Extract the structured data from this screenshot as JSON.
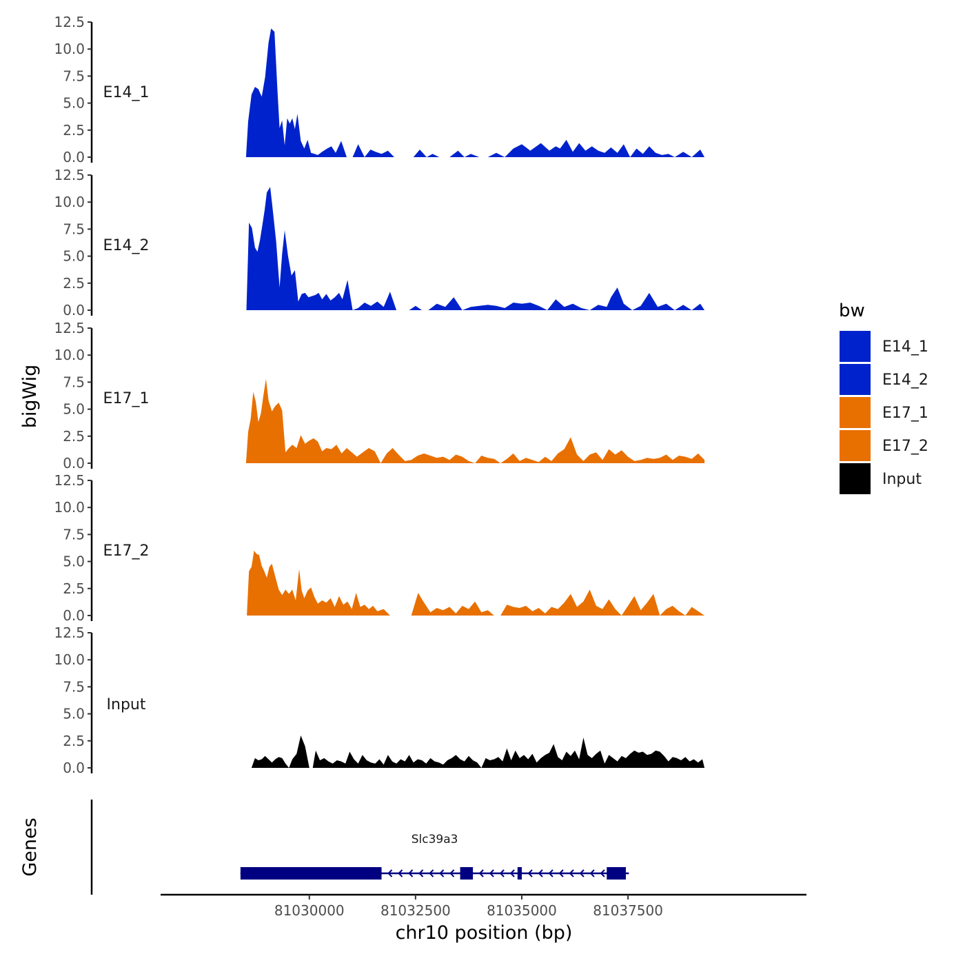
{
  "chart_data": {
    "type": "area",
    "ylabel": "bigWig",
    "xlabel": "chr10 position (bp)",
    "genes_label": "Genes",
    "ylim": [
      0,
      12.5
    ],
    "yticks": [
      "0.0",
      "2.5",
      "5.0",
      "7.5",
      "10.0",
      "12.5"
    ],
    "xlim": [
      81026500,
      81041700
    ],
    "xticks": [
      81030000,
      81032500,
      81035000,
      81037500
    ],
    "xtick_labels": [
      "81030000",
      "81032500",
      "81035000",
      "81037500"
    ],
    "legend": {
      "title": "bw",
      "position": "right",
      "entries": [
        {
          "label": "E14_1",
          "color": "#0022cc"
        },
        {
          "label": "E14_2",
          "color": "#0022cc"
        },
        {
          "label": "E17_1",
          "color": "#e87000"
        },
        {
          "label": "E17_2",
          "color": "#e87000"
        },
        {
          "label": "Input",
          "color": "#000000"
        }
      ]
    },
    "series": [
      {
        "name": "E14_1",
        "color": "#0022cc",
        "x": [
          81028510,
          81028560,
          81028640,
          81028720,
          81028800,
          81028880,
          81028960,
          81029040,
          81029100,
          81029180,
          81029250,
          81029300,
          81029360,
          81029420,
          81029480,
          81029540,
          81029600,
          81029660,
          81029720,
          81029800,
          81029880,
          81029960,
          81030040,
          81030120,
          81030200,
          81030300,
          81030420,
          81030520,
          81030620,
          81030750,
          81030880,
          81031020,
          81031150,
          81031300,
          81031440,
          81031560,
          81031700,
          81031850,
          81032000,
          81032150,
          81032300,
          81032450,
          81032600,
          81032760,
          81032900,
          81033060,
          81033300,
          81033500,
          81033650,
          81033800,
          81034000,
          81034200,
          81034400,
          81034600,
          81034800,
          81035000,
          81035200,
          81035450,
          81035650,
          81035800,
          81035900,
          81036050,
          81036200,
          81036350,
          81036500,
          81036650,
          81036800,
          81036950,
          81037100,
          81037250,
          81037400,
          81037550,
          81037700,
          81037850,
          81038000,
          81038150,
          81038300,
          81038450,
          81038600,
          81038800,
          81039000,
          81039200,
          81039300
        ],
        "y": [
          0,
          3.3,
          5.8,
          6.5,
          6.3,
          5.6,
          7.4,
          10.6,
          11.9,
          11.6,
          6.2,
          2.7,
          3.4,
          1.1,
          3.6,
          3.1,
          3.6,
          2.6,
          4.0,
          1.5,
          0.8,
          1.6,
          0.4,
          0.3,
          0.2,
          0.5,
          0.8,
          1.0,
          0.4,
          1.5,
          0.0,
          0.0,
          1.2,
          0.0,
          0.7,
          0.5,
          0.3,
          0.6,
          0.0,
          0.0,
          0.0,
          0.0,
          0.7,
          0.0,
          0.3,
          0.0,
          0.0,
          0.6,
          0.0,
          0.3,
          0.0,
          0.0,
          0.4,
          0.0,
          0.8,
          1.2,
          0.6,
          1.3,
          0.6,
          1.0,
          0.8,
          1.6,
          0.5,
          1.3,
          0.6,
          1.0,
          0.6,
          0.4,
          0.9,
          0.4,
          1.2,
          0.0,
          0.8,
          0.3,
          1.0,
          0.4,
          0.2,
          0.3,
          0.0,
          0.5,
          0.0,
          0.7,
          0.0
        ]
      },
      {
        "name": "E14_2",
        "color": "#0022cc",
        "x": [
          81028520,
          81028580,
          81028650,
          81028720,
          81028780,
          81028840,
          81028900,
          81028950,
          81029000,
          81029080,
          81029140,
          81029220,
          81029300,
          81029360,
          81029420,
          81029500,
          81029580,
          81029660,
          81029740,
          81029820,
          81029900,
          81029980,
          81030060,
          81030140,
          81030220,
          81030300,
          81030400,
          81030500,
          81030600,
          81030700,
          81030780,
          81030900,
          81031020,
          81031150,
          81031300,
          81031450,
          81031600,
          81031750,
          81031900,
          81032050,
          81032200,
          81032350,
          81032500,
          81032650,
          81032800,
          81033000,
          81033200,
          81033400,
          81033600,
          81033800,
          81034000,
          81034200,
          81034400,
          81034600,
          81034800,
          81035000,
          81035200,
          81035400,
          81035600,
          81035800,
          81036000,
          81036200,
          81036400,
          81036600,
          81036800,
          81037000,
          81037100,
          81037250,
          81037400,
          81037600,
          81037800,
          81038000,
          81038200,
          81038400,
          81038600,
          81038800,
          81039000,
          81039200,
          81039300
        ],
        "y": [
          0,
          8.1,
          7.6,
          5.8,
          5.4,
          6.5,
          8.0,
          9.3,
          10.9,
          11.4,
          9.3,
          6.3,
          2.1,
          5.2,
          7.4,
          5.0,
          3.2,
          3.7,
          0.8,
          1.5,
          1.6,
          1.2,
          1.3,
          1.4,
          1.6,
          1.0,
          1.5,
          0.9,
          1.2,
          1.6,
          1.0,
          2.8,
          0.0,
          0.2,
          0.7,
          0.4,
          0.8,
          0.3,
          1.7,
          0.0,
          0.0,
          0.0,
          0.4,
          0.0,
          0.0,
          0.6,
          0.3,
          1.2,
          0.0,
          0.3,
          0.4,
          0.5,
          0.4,
          0.2,
          0.7,
          0.6,
          0.7,
          0.4,
          0.0,
          1.0,
          0.3,
          0.6,
          0.2,
          0.0,
          0.5,
          0.3,
          1.2,
          2.1,
          0.6,
          0.0,
          0.4,
          1.6,
          0.3,
          0.6,
          0.0,
          0.5,
          0.0,
          0.6,
          0.0
        ]
      },
      {
        "name": "E17_1",
        "color": "#e87000",
        "x": [
          81028510,
          81028560,
          81028620,
          81028680,
          81028740,
          81028800,
          81028860,
          81028920,
          81028980,
          81029040,
          81029120,
          81029200,
          81029280,
          81029360,
          81029440,
          81029520,
          81029600,
          81029700,
          81029800,
          81029900,
          81030000,
          81030100,
          81030200,
          81030300,
          81030400,
          81030520,
          81030640,
          81030760,
          81030880,
          81031000,
          81031120,
          81031260,
          81031400,
          81031540,
          81031680,
          81031820,
          81031960,
          81032100,
          81032250,
          81032400,
          81032550,
          81032700,
          81032850,
          81033000,
          81033150,
          81033300,
          81033450,
          81033600,
          81033750,
          81033900,
          81034050,
          81034200,
          81034350,
          81034500,
          81034650,
          81034800,
          81034950,
          81035100,
          81035250,
          81035400,
          81035550,
          81035700,
          81035850,
          81036000,
          81036150,
          81036300,
          81036450,
          81036600,
          81036750,
          81036900,
          81037050,
          81037200,
          81037350,
          81037500,
          81037650,
          81037800,
          81037950,
          81038100,
          81038250,
          81038400,
          81038550,
          81038700,
          81038850,
          81039000,
          81039150,
          81039300
        ],
        "y": [
          0,
          2.9,
          4.1,
          6.6,
          5.7,
          3.8,
          4.6,
          6.3,
          7.8,
          5.8,
          4.8,
          5.3,
          5.6,
          4.9,
          1.0,
          1.4,
          1.7,
          1.4,
          2.6,
          1.8,
          2.1,
          2.3,
          2.0,
          1.1,
          1.4,
          1.3,
          1.7,
          0.9,
          1.4,
          1.0,
          0.6,
          1.0,
          1.4,
          1.1,
          0.0,
          0.9,
          1.4,
          0.8,
          0.2,
          0.3,
          0.7,
          0.9,
          0.7,
          0.5,
          0.6,
          0.3,
          0.8,
          0.6,
          0.2,
          0.0,
          0.7,
          0.5,
          0.4,
          0.0,
          0.4,
          0.9,
          0.2,
          0.5,
          0.3,
          0.1,
          0.6,
          0.2,
          0.9,
          1.3,
          2.4,
          0.8,
          0.2,
          0.8,
          1.0,
          0.3,
          1.3,
          0.8,
          1.2,
          0.6,
          0.2,
          0.3,
          0.5,
          0.4,
          0.5,
          0.8,
          0.3,
          0.7,
          0.6,
          0.4,
          0.9,
          0.3
        ]
      },
      {
        "name": "E17_2",
        "color": "#e87000",
        "x": [
          81028530,
          81028580,
          81028640,
          81028700,
          81028760,
          81028820,
          81028880,
          81028940,
          81029000,
          81029060,
          81029120,
          81029200,
          81029280,
          81029360,
          81029440,
          81029520,
          81029600,
          81029680,
          81029760,
          81029820,
          81029880,
          81029960,
          81030040,
          81030120,
          81030200,
          81030300,
          81030400,
          81030500,
          81030600,
          81030700,
          81030800,
          81030900,
          81031000,
          81031100,
          81031200,
          81031300,
          81031400,
          81031500,
          81031600,
          81031750,
          81031900,
          81032050,
          81032200,
          81032400,
          81032560,
          81032700,
          81032850,
          81033000,
          81033150,
          81033300,
          81033450,
          81033600,
          81033750,
          81033900,
          81034050,
          81034200,
          81034350,
          81034500,
          81034650,
          81034800,
          81034950,
          81035100,
          81035250,
          81035400,
          81035550,
          81035700,
          81035850,
          81036000,
          81036150,
          81036300,
          81036450,
          81036600,
          81036750,
          81036900,
          81037050,
          81037200,
          81037350,
          81037500,
          81037650,
          81037800,
          81037950,
          81038100,
          81038250,
          81038400,
          81038550,
          81038700,
          81038850,
          81039000,
          81039150,
          81039300
        ],
        "y": [
          0,
          4.1,
          4.5,
          6.0,
          5.7,
          5.6,
          4.6,
          4.1,
          3.5,
          4.5,
          4.8,
          3.6,
          2.4,
          1.9,
          2.4,
          2.0,
          2.4,
          1.4,
          4.3,
          2.3,
          1.6,
          2.3,
          2.6,
          1.7,
          1.1,
          1.4,
          1.2,
          1.6,
          0.8,
          1.8,
          1.0,
          1.3,
          0.6,
          2.1,
          0.8,
          1.0,
          0.6,
          0.9,
          0.4,
          0.6,
          0.0,
          0.0,
          0.0,
          0.0,
          2.1,
          1.2,
          0.3,
          0.7,
          0.5,
          0.8,
          0.2,
          0.9,
          0.6,
          1.3,
          0.3,
          0.5,
          0.0,
          0.0,
          1.0,
          0.8,
          0.7,
          0.9,
          0.4,
          0.7,
          0.2,
          0.8,
          0.6,
          1.2,
          2.0,
          0.8,
          1.3,
          2.4,
          0.9,
          0.6,
          1.5,
          0.6,
          0.0,
          0.9,
          1.8,
          0.5,
          1.2,
          2.0,
          0.0,
          0.6,
          0.9,
          0.4,
          0.0,
          0.8,
          0.4,
          0.0
        ]
      },
      {
        "name": "Input",
        "color": "#000000",
        "x": [
          81028640,
          81028720,
          81028800,
          81028880,
          81028960,
          81029040,
          81029120,
          81029200,
          81029280,
          81029360,
          81029440,
          81029520,
          81029600,
          81029700,
          81029800,
          81029900,
          81030000,
          81030080,
          81030150,
          81030250,
          81030350,
          81030450,
          81030550,
          81030650,
          81030750,
          81030850,
          81030950,
          81031050,
          81031150,
          81031250,
          81031350,
          81031450,
          81031550,
          81031650,
          81031750,
          81031850,
          81031950,
          81032050,
          81032150,
          81032250,
          81032350,
          81032450,
          81032550,
          81032650,
          81032750,
          81032850,
          81032950,
          81033050,
          81033150,
          81033250,
          81033350,
          81033450,
          81033550,
          81033650,
          81033750,
          81033850,
          81033950,
          81034050,
          81034150,
          81034250,
          81034350,
          81034450,
          81034550,
          81034650,
          81034750,
          81034850,
          81034950,
          81035050,
          81035150,
          81035250,
          81035350,
          81035450,
          81035550,
          81035650,
          81035750,
          81035850,
          81035950,
          81036050,
          81036150,
          81036250,
          81036350,
          81036450,
          81036550,
          81036650,
          81036750,
          81036850,
          81036950,
          81037050,
          81037150,
          81037250,
          81037350,
          81037450,
          81037550,
          81037650,
          81037750,
          81037850,
          81037950,
          81038050,
          81038150,
          81038250,
          81038350,
          81038450,
          81038550,
          81038650,
          81038750,
          81038850,
          81038950,
          81039050,
          81039150,
          81039250,
          81039300
        ],
        "y": [
          0,
          0.9,
          0.7,
          0.8,
          1.1,
          0.8,
          0.5,
          0.8,
          1.0,
          0.9,
          0.4,
          0.0,
          0.8,
          1.3,
          3.0,
          2.0,
          0.0,
          0.0,
          1.6,
          0.7,
          0.9,
          0.6,
          0.4,
          0.7,
          0.6,
          0.4,
          1.5,
          0.8,
          0.4,
          1.2,
          0.7,
          0.5,
          0.4,
          0.8,
          0.3,
          1.2,
          0.6,
          0.4,
          0.8,
          0.6,
          1.2,
          0.5,
          0.8,
          0.7,
          0.4,
          0.9,
          0.6,
          0.5,
          0.3,
          0.7,
          0.9,
          1.2,
          0.8,
          0.6,
          1.1,
          0.7,
          0.5,
          0.0,
          0.9,
          0.7,
          0.8,
          1.0,
          0.6,
          1.8,
          0.7,
          1.6,
          0.9,
          1.2,
          0.8,
          1.3,
          0.5,
          0.9,
          1.2,
          1.4,
          2.2,
          1.0,
          0.7,
          1.5,
          1.1,
          1.6,
          0.8,
          2.8,
          1.2,
          0.9,
          1.3,
          1.6,
          0.4,
          1.2,
          0.9,
          0.6,
          1.1,
          0.9,
          1.3,
          1.6,
          1.4,
          1.5,
          1.2,
          1.3,
          1.6,
          1.5,
          1.1,
          0.6,
          1.0,
          0.9,
          0.7,
          1.0,
          0.6,
          0.8,
          0.5,
          0.8,
          0.0
        ]
      }
    ],
    "gene": {
      "name": "Slc39a3",
      "strand": "-",
      "color": "#000080",
      "start": 81028380,
      "end": 81037520,
      "exons": [
        [
          81028380,
          81031700
        ],
        [
          81033550,
          81033850
        ],
        [
          81034900,
          81035000
        ],
        [
          81037000,
          81037450
        ]
      ]
    }
  }
}
